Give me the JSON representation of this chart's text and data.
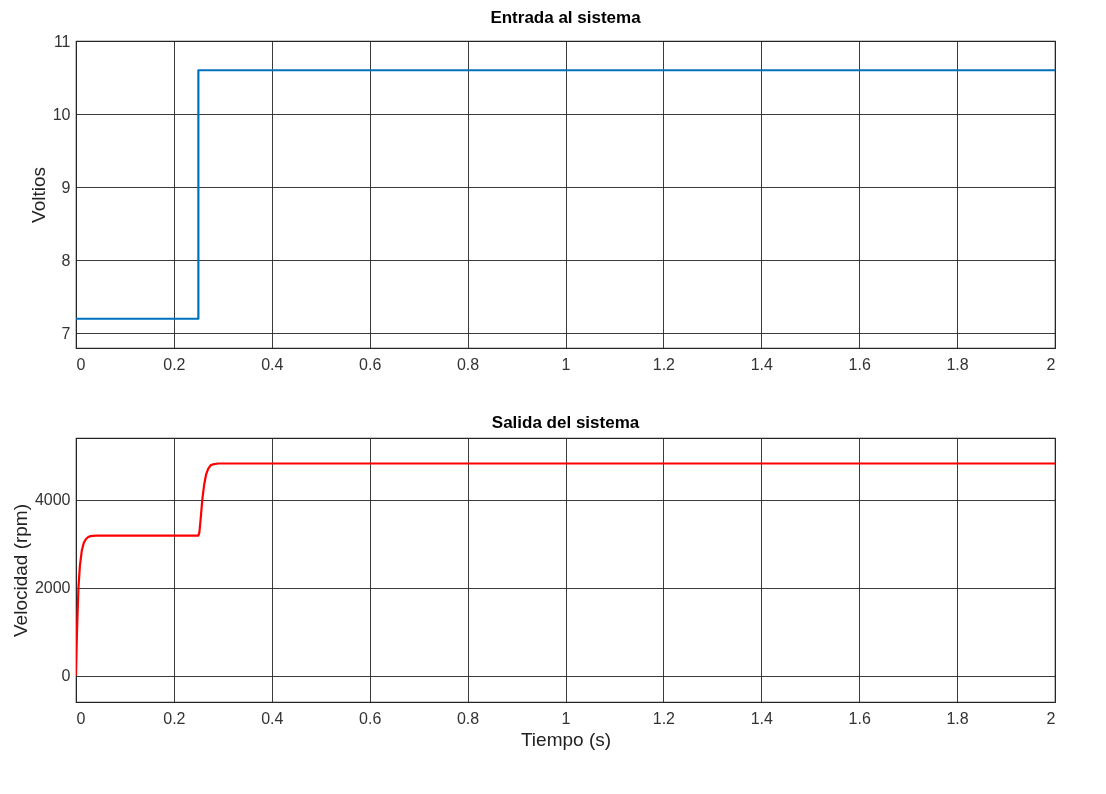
{
  "chart_data": [
    {
      "type": "step",
      "title": "Entrada al sistema",
      "ylabel": "Voltios",
      "x": [
        0,
        0.25,
        2
      ],
      "series": [
        {
          "color": "#0072bd",
          "values": [
            7.2,
            10.6,
            10.6
          ]
        }
      ],
      "xlim": [
        0,
        2
      ],
      "xticks": [
        0,
        0.2,
        0.4,
        0.6,
        0.8,
        1,
        1.2,
        1.4,
        1.6,
        1.8,
        2
      ],
      "ylim": [
        6.8,
        11
      ],
      "yticks": [
        7,
        8,
        9,
        10,
        11
      ],
      "grid": true
    },
    {
      "type": "line",
      "title": "Salida del sistema",
      "xlabel": "Tiempo (s)",
      "ylabel": "Velocidad (rpm)",
      "x": [
        0,
        0.002,
        0.005,
        0.008,
        0.012,
        0.016,
        0.02,
        0.025,
        0.03,
        0.04,
        0.06,
        0.1,
        0.2,
        0.25,
        0.252,
        0.255,
        0.258,
        0.262,
        0.266,
        0.27,
        0.275,
        0.28,
        0.29,
        0.3,
        0.4,
        1,
        2
      ],
      "series": [
        {
          "color": "#ff0000",
          "values": [
            0,
            1000,
            2000,
            2500,
            2850,
            3020,
            3100,
            3150,
            3170,
            3180,
            3180,
            3180,
            3180,
            3180,
            3250,
            3600,
            4000,
            4350,
            4580,
            4700,
            4780,
            4800,
            4820,
            4820,
            4820,
            4820,
            4820
          ]
        }
      ],
      "xlim": [
        0,
        2
      ],
      "xticks": [
        0,
        0.2,
        0.4,
        0.6,
        0.8,
        1,
        1.2,
        1.4,
        1.6,
        1.8,
        2
      ],
      "ylim": [
        -600,
        5400
      ],
      "yticks": [
        0,
        2000,
        4000
      ],
      "grid": true
    }
  ]
}
